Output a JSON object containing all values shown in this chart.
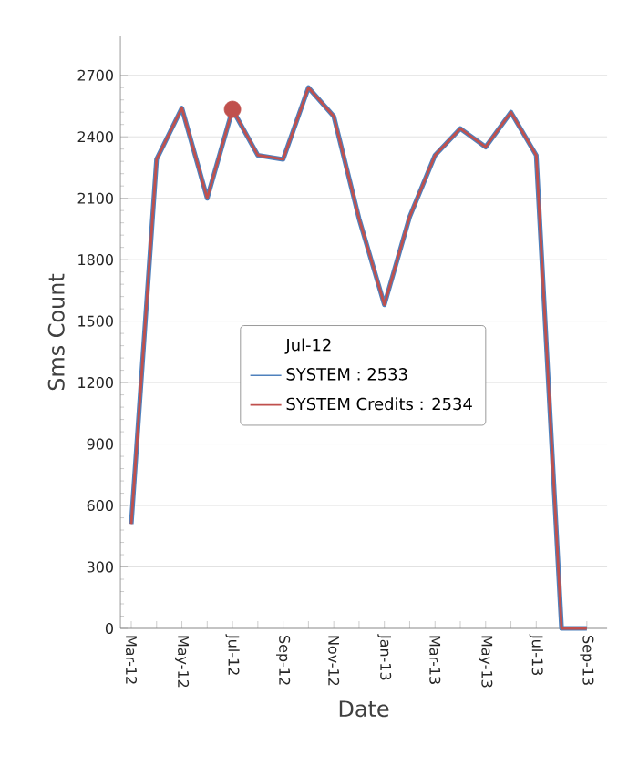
{
  "chart_data": {
    "type": "line",
    "xlabel": "Date",
    "ylabel": "Sms Count",
    "legend": "center",
    "grid": "y",
    "legend_title": "Jul-12",
    "categories": [
      "Mar-12",
      null,
      "May-12",
      null,
      "Jul-12",
      null,
      "Sep-12",
      null,
      "Nov-12",
      null,
      "Jan-13",
      null,
      "Mar-13",
      null,
      "May-13",
      null,
      "Jul-13",
      null,
      "Sep-13"
    ],
    "ylim": [
      0,
      2890
    ],
    "yticks": [
      0,
      300,
      600,
      900,
      1200,
      1500,
      1800,
      2100,
      2400,
      2700
    ],
    "series": [
      {
        "name": "SYSTEM : 2533",
        "color": "#4f81bd",
        "values": [
          510,
          2290,
          2540,
          2100,
          2533,
          2310,
          2290,
          2640,
          2500,
          2000,
          1580,
          2010,
          2310,
          2440,
          2350,
          2520,
          2310,
          0,
          0
        ]
      },
      {
        "name": "SYSTEM Credits : 2534",
        "color": "#c0504d",
        "values": [
          510,
          2290,
          2540,
          2100,
          2534,
          2310,
          2290,
          2640,
          2500,
          2000,
          1580,
          2010,
          2310,
          2440,
          2350,
          2520,
          2310,
          0,
          0
        ]
      }
    ]
  }
}
